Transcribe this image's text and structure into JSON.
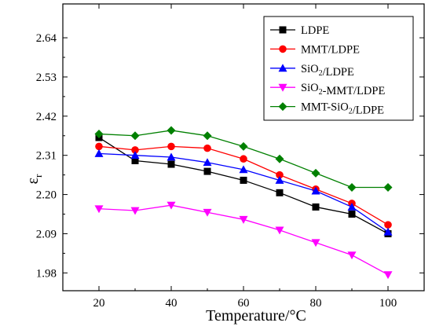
{
  "chart_data": {
    "type": "line",
    "title": "",
    "xlabel": "Temperature/°C",
    "ylabel": {
      "base": "ε",
      "sub": "r"
    },
    "x": [
      20,
      30,
      40,
      50,
      60,
      70,
      80,
      90,
      100
    ],
    "xlim": [
      10,
      110
    ],
    "ylim": [
      1.93,
      2.735
    ],
    "x_ticks": [
      20,
      40,
      60,
      80,
      100
    ],
    "y_ticks": [
      1.98,
      2.09,
      2.2,
      2.31,
      2.42,
      2.53,
      2.64
    ],
    "y_tick_labels": [
      "1.98",
      "2.09",
      "2.20",
      "2.31",
      "2.42",
      "2.53",
      "2.64"
    ],
    "grid": false,
    "legend_position": "top-right",
    "series": [
      {
        "name": "LDPE",
        "legend": [
          {
            "t": "LDPE"
          }
        ],
        "color": "#000000",
        "marker": "square",
        "values": [
          2.36,
          2.295,
          2.285,
          2.265,
          2.24,
          2.205,
          2.165,
          2.145,
          2.09
        ]
      },
      {
        "name": "MMT/LDPE",
        "legend": [
          {
            "t": "MMT/LDPE"
          }
        ],
        "color": "#ff0000",
        "marker": "circle",
        "values": [
          2.335,
          2.325,
          2.335,
          2.33,
          2.3,
          2.255,
          2.215,
          2.175,
          2.115
        ]
      },
      {
        "name": "SiO2/LDPE",
        "legend": [
          {
            "t": "SiO"
          },
          {
            "t": "2",
            "sub": true
          },
          {
            "t": "/LDPE"
          }
        ],
        "color": "#0000ff",
        "marker": "triangle-up",
        "values": [
          2.315,
          2.31,
          2.305,
          2.29,
          2.27,
          2.24,
          2.21,
          2.165,
          2.095
        ]
      },
      {
        "name": "SiO2-MMT/LDPE",
        "legend": [
          {
            "t": "SiO"
          },
          {
            "t": "2",
            "sub": true
          },
          {
            "t": "-MMT/LDPE"
          }
        ],
        "color": "#ff00ff",
        "marker": "triangle-down",
        "values": [
          2.16,
          2.155,
          2.17,
          2.15,
          2.13,
          2.1,
          2.065,
          2.03,
          1.975
        ]
      },
      {
        "name": "MMT-SiO2/LDPE",
        "legend": [
          {
            "t": "MMT-SiO"
          },
          {
            "t": "2",
            "sub": true
          },
          {
            "t": "/LDPE"
          }
        ],
        "color": "#008000",
        "marker": "diamond",
        "values": [
          2.37,
          2.365,
          2.38,
          2.365,
          2.335,
          2.3,
          2.26,
          2.22,
          2.22
        ]
      }
    ]
  }
}
